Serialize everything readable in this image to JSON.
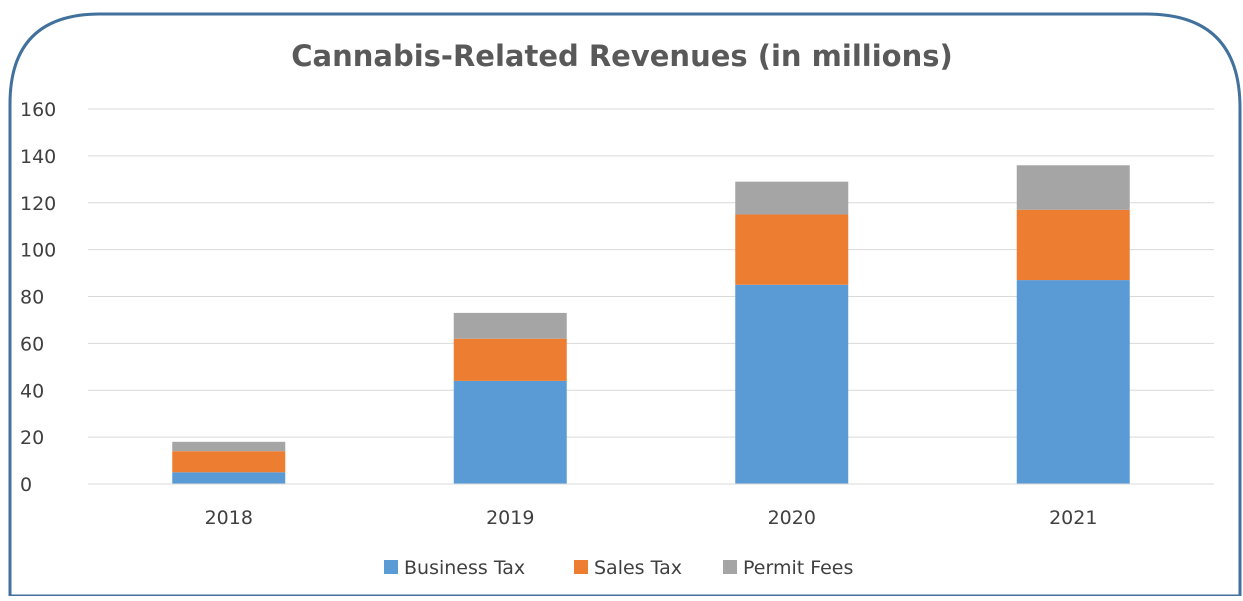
{
  "chart_data": {
    "type": "bar",
    "stacked": true,
    "title": "Cannabis-Related Revenues (in millions)",
    "xlabel": "",
    "ylabel": "",
    "categories": [
      "2018",
      "2019",
      "2020",
      "2021"
    ],
    "series": [
      {
        "name": "Business Tax",
        "values": [
          5,
          44,
          85,
          87
        ],
        "color": "#5b9bd5"
      },
      {
        "name": "Sales Tax",
        "values": [
          9,
          18,
          30,
          30
        ],
        "color": "#ed7d31"
      },
      {
        "name": "Permit Fees",
        "values": [
          4,
          11,
          14,
          19
        ],
        "color": "#a5a5a5"
      }
    ],
    "ylim": [
      0,
      160
    ],
    "yticks": [
      "0",
      "20",
      "40",
      "60",
      "80",
      "100",
      "120",
      "140",
      "160"
    ],
    "grid": true,
    "legend_position": "bottom",
    "frame_color": "#41719c",
    "gridline_color": "#d9d9d9",
    "title_color": "#595959",
    "text_color": "#404040"
  }
}
